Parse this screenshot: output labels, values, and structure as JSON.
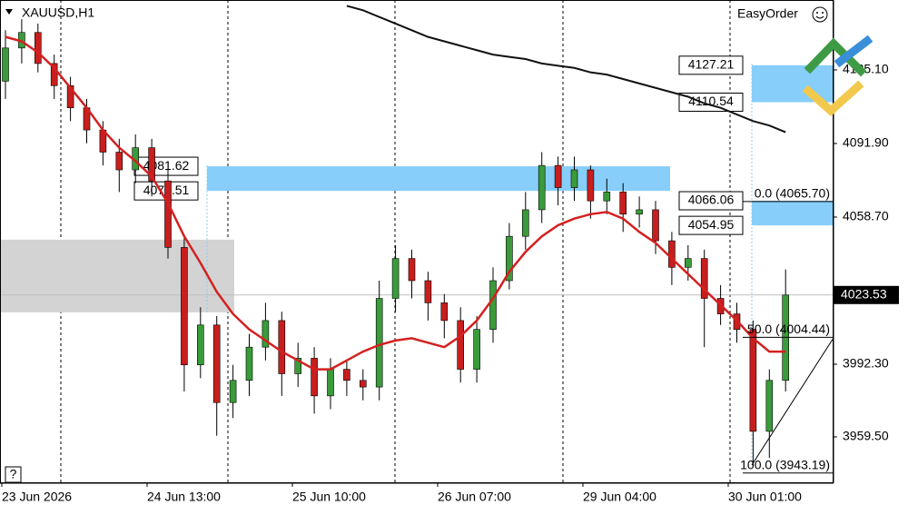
{
  "chart_data": {
    "type": "candlestick",
    "symbol": "XAUUSD,H1",
    "brand": "EasyOrder",
    "help": "?",
    "up_color": "#3a9b3a",
    "down_color": "#c81e1e",
    "open": [
      4120,
      4135,
      4142,
      4128,
      4118,
      4108,
      4098,
      4088,
      4080,
      4090,
      4075,
      4045,
      3992,
      4010,
      3975,
      3985,
      4000,
      4012,
      3988,
      3995,
      3978,
      3990,
      3985,
      3982,
      4022,
      4040,
      4030,
      4020,
      4012,
      3990,
      4008,
      4030,
      4050,
      4062,
      4082,
      4072,
      4080,
      4066,
      4070,
      4060,
      4062,
      4048,
      4036,
      4040,
      4022,
      4015,
      4008,
      3962,
      3985
    ],
    "high": [
      4143,
      4148,
      4146,
      4132,
      4122,
      4112,
      4102,
      4094,
      4096,
      4094,
      4080,
      4050,
      4018,
      4014,
      3992,
      4006,
      4020,
      4016,
      4002,
      4000,
      3995,
      3994,
      3990,
      4030,
      4046,
      4044,
      4034,
      4024,
      4018,
      4014,
      4036,
      4056,
      4070,
      4088,
      4086,
      4086,
      4082,
      4076,
      4074,
      4068,
      4066,
      4052,
      4046,
      4044,
      4028,
      4020,
      4012,
      3990,
      4035
    ],
    "low": [
      4112,
      4128,
      4124,
      4112,
      4102,
      4092,
      4082,
      4070,
      4074,
      4068,
      4040,
      3980,
      3986,
      3960,
      3968,
      3978,
      3994,
      3978,
      3982,
      3970,
      3972,
      3978,
      3976,
      3976,
      4016,
      4022,
      4012,
      4004,
      3984,
      3984,
      4002,
      4026,
      4044,
      4056,
      4064,
      4066,
      4058,
      4060,
      4052,
      4054,
      4042,
      4028,
      4030,
      4000,
      4010,
      4002,
      3948,
      3950,
      3980
    ],
    "close": [
      4135,
      4142,
      4128,
      4118,
      4108,
      4098,
      4088,
      4080,
      4090,
      4075,
      4045,
      3992,
      4010,
      3975,
      3985,
      4000,
      4012,
      3988,
      3995,
      3978,
      3990,
      3985,
      3982,
      4022,
      4040,
      4030,
      4020,
      4012,
      3990,
      4008,
      4030,
      4050,
      4062,
      4082,
      4072,
      4080,
      4066,
      4070,
      4060,
      4062,
      4048,
      4036,
      4040,
      4022,
      4015,
      4008,
      3962,
      3985,
      4023.53
    ],
    "series": [
      {
        "color": "#d42020",
        "values": [
          4140,
          4138,
          4133,
          4126,
          4117,
          4108,
          4098,
          4090,
          4084,
          4077,
          4065,
          4050,
          4038,
          4025,
          4015,
          4008,
          4003,
          3998,
          3994,
          3990,
          3990,
          3994,
          3998,
          4001,
          4003,
          4004,
          4002,
          4000,
          4005,
          4012,
          4022,
          4034,
          4043,
          4050,
          4055,
          4058,
          4060,
          4061,
          4058,
          4052,
          4047,
          4040,
          4033,
          4026,
          4019,
          4012,
          4004,
          3998,
          3998
        ]
      },
      {
        "color": "#111111",
        "values": [
          null,
          null,
          null,
          null,
          null,
          null,
          null,
          null,
          null,
          null,
          null,
          null,
          null,
          null,
          null,
          null,
          null,
          null,
          null,
          null,
          null,
          4154,
          4152,
          4149,
          4146,
          4143,
          4140,
          4138,
          4136,
          4134,
          4132,
          4131,
          4130,
          4128,
          4127,
          4126,
          4124,
          4123,
          4121,
          4119,
          4117,
          4115,
          4113,
          4110,
          4108,
          4105,
          4102,
          4100,
          4097
        ]
      }
    ],
    "ylim": [
      3938.6,
      4156.65
    ],
    "yticks": [
      {
        "value": 4125.1,
        "label": "4125.10"
      },
      {
        "value": 4091.9,
        "label": "4091.90"
      },
      {
        "value": 4058.7,
        "label": "4058.70"
      },
      {
        "value": 3992.3,
        "label": "3992.30"
      },
      {
        "value": 3959.5,
        "label": "3959.50"
      }
    ],
    "x_labels": [
      "23 Jun 2026",
      "24 Jun 13:00",
      "25 Jun 10:00",
      "26 Jun 07:00",
      "29 Jun 04:00",
      "30 Jun 01:00"
    ],
    "current_price": 4023.53,
    "gray_zone": [
      4048.5,
      4015.7
    ],
    "zones": [
      {
        "top": 4081.62,
        "bottom": 4070.51
      },
      {
        "top": 4127.21,
        "bottom": 4110.54
      },
      {
        "top": 4066.06,
        "bottom": 4054.95
      }
    ],
    "fibo": [
      {
        "label": "0.0 (4065.70)",
        "price": 4065.7
      },
      {
        "label": "50.0 (4004.44)",
        "price": 4004.44
      },
      {
        "label": "100.0 (3943.19)",
        "price": 3943.19
      }
    ]
  }
}
